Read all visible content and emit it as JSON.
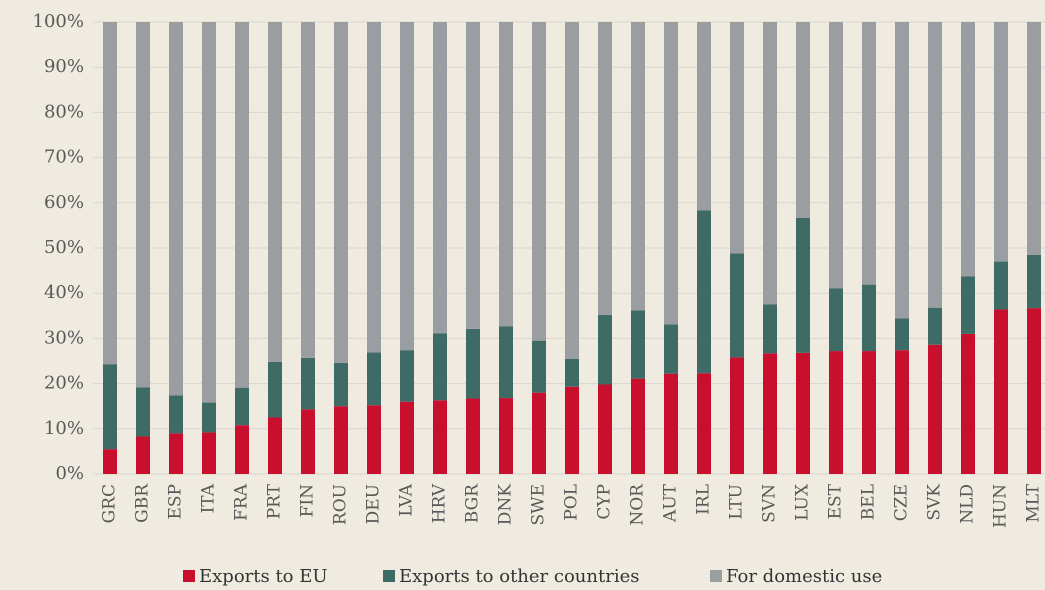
{
  "chart_data": {
    "type": "stacked_bar",
    "categories": [
      "GRC",
      "GBR",
      "ESP",
      "ITA",
      "FRA",
      "PRT",
      "FIN",
      "ROU",
      "DEU",
      "LVA",
      "HRV",
      "BGR",
      "DNK",
      "SWE",
      "POL",
      "CYP",
      "NOR",
      "AUT",
      "IRL",
      "LTU",
      "SVN",
      "LUX",
      "EST",
      "BEL",
      "CZE",
      "SVK",
      "NLD",
      "HUN",
      "MLT"
    ],
    "series": [
      {
        "name": "Exports to EU",
        "color": "#c8102e",
        "values": [
          5.5,
          8.3,
          9,
          9.2,
          10.8,
          12.5,
          14.3,
          15,
          15.2,
          16,
          16.3,
          16.7,
          16.8,
          18,
          19.3,
          19.8,
          21.1,
          22.2,
          22.3,
          25.8,
          26.7,
          26.8,
          27.2,
          27.2,
          27.4,
          28.6,
          31,
          36.4,
          36.7
        ]
      },
      {
        "name": "Exports to other countries",
        "color": "#3f6b66",
        "values": [
          18.8,
          10.9,
          8.4,
          6.6,
          8.3,
          12.3,
          11.4,
          9.6,
          11.7,
          11.4,
          14.8,
          15.4,
          15.9,
          11.5,
          6.2,
          15.4,
          15.1,
          10.9,
          36,
          23,
          10.8,
          29.9,
          13.9,
          14.7,
          7,
          8.2,
          12.7,
          10.6,
          11.8
        ]
      },
      {
        "name": "For domestic use",
        "color": "#9b9ea1",
        "values": [
          75.7,
          80.8,
          82.6,
          84.2,
          80.9,
          75.2,
          74.3,
          75.4,
          73.1,
          72.6,
          68.9,
          67.9,
          67.3,
          70.5,
          74.5,
          64.8,
          63.8,
          66.9,
          41.7,
          51.2,
          62.5,
          43.3,
          58.9,
          58.1,
          65.6,
          63.2,
          56.3,
          53,
          51.5
        ]
      }
    ],
    "ylim": [
      0,
      100
    ],
    "yticks": [
      {
        "value": 0,
        "label": "0%"
      },
      {
        "value": 10,
        "label": "10%"
      },
      {
        "value": 20,
        "label": "20%"
      },
      {
        "value": 30,
        "label": "30%"
      },
      {
        "value": 40,
        "label": "40%"
      },
      {
        "value": 50,
        "label": "50%"
      },
      {
        "value": 60,
        "label": "60%"
      },
      {
        "value": 70,
        "label": "70%"
      },
      {
        "value": 80,
        "label": "80%"
      },
      {
        "value": 90,
        "label": "90%"
      },
      {
        "value": 100,
        "label": "100%"
      }
    ],
    "grid": true,
    "legend": "bottom"
  }
}
